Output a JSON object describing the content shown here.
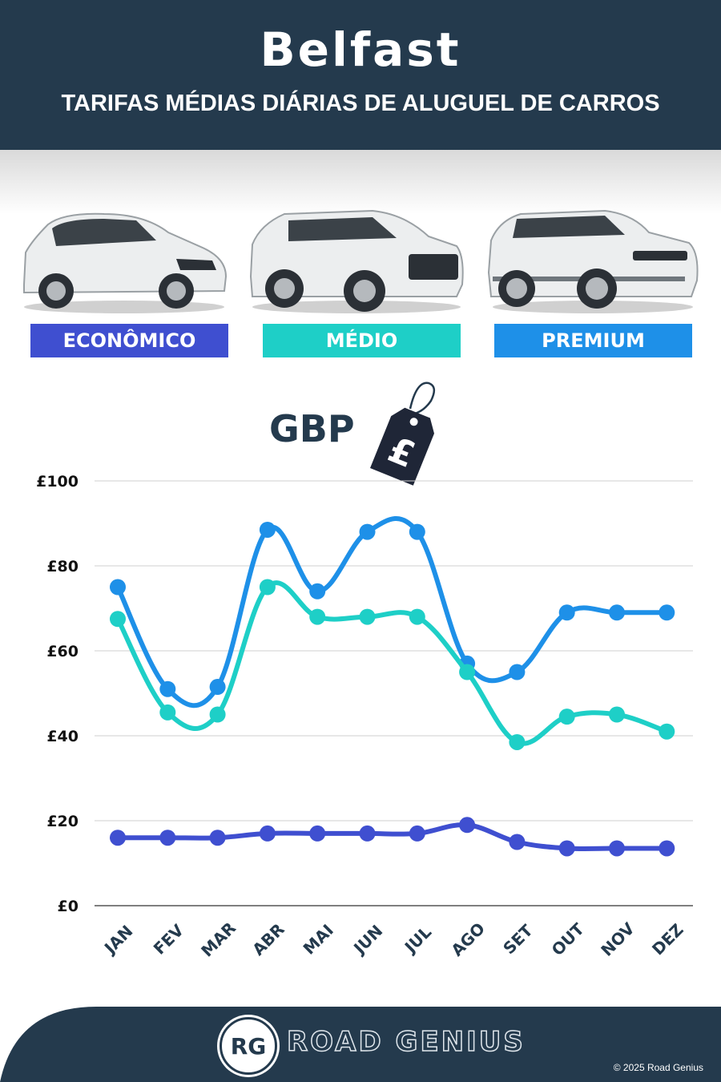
{
  "header": {
    "title": "Belfast",
    "subtitle": "TARIFAS MÉDIAS DIÁRIAS DE ALUGUEL DE CARROS"
  },
  "categories": [
    {
      "label": "ECONÔMICO",
      "color": "#3f4fd0"
    },
    {
      "label": "MÉDIO",
      "color": "#1ecfc7"
    },
    {
      "label": "PREMIUM",
      "color": "#1e90e8"
    }
  ],
  "currency": {
    "label": "GBP",
    "symbol": "£"
  },
  "chart_data": {
    "type": "line",
    "categories": [
      "JAN",
      "FEV",
      "MAR",
      "ABR",
      "MAI",
      "JUN",
      "JUL",
      "AGO",
      "SET",
      "OUT",
      "NOV",
      "DEZ"
    ],
    "series": [
      {
        "name": "PREMIUM",
        "color": "#1e90e8",
        "values": [
          75,
          51,
          51.5,
          88.5,
          74,
          88,
          88,
          57,
          55,
          69,
          69,
          69
        ]
      },
      {
        "name": "MÉDIO",
        "color": "#1ecfc7",
        "values": [
          67.5,
          45.5,
          45,
          75,
          68,
          68,
          68,
          55,
          38.5,
          44.5,
          45,
          41
        ]
      },
      {
        "name": "ECONÔMICO",
        "color": "#3f4fd0",
        "values": [
          16,
          16,
          16,
          17,
          17,
          17,
          17,
          19,
          15,
          13.5,
          13.5,
          13.5
        ]
      }
    ],
    "y_ticks": [
      "£0",
      "£20",
      "£40",
      "£60",
      "£80",
      "£100"
    ],
    "ylim": [
      0,
      100
    ],
    "grid": true
  },
  "footer": {
    "logo": "RG",
    "brand": "ROAD GENIUS",
    "copyright": "© 2025 Road Genius",
    "bg_color": "#243a4d"
  }
}
